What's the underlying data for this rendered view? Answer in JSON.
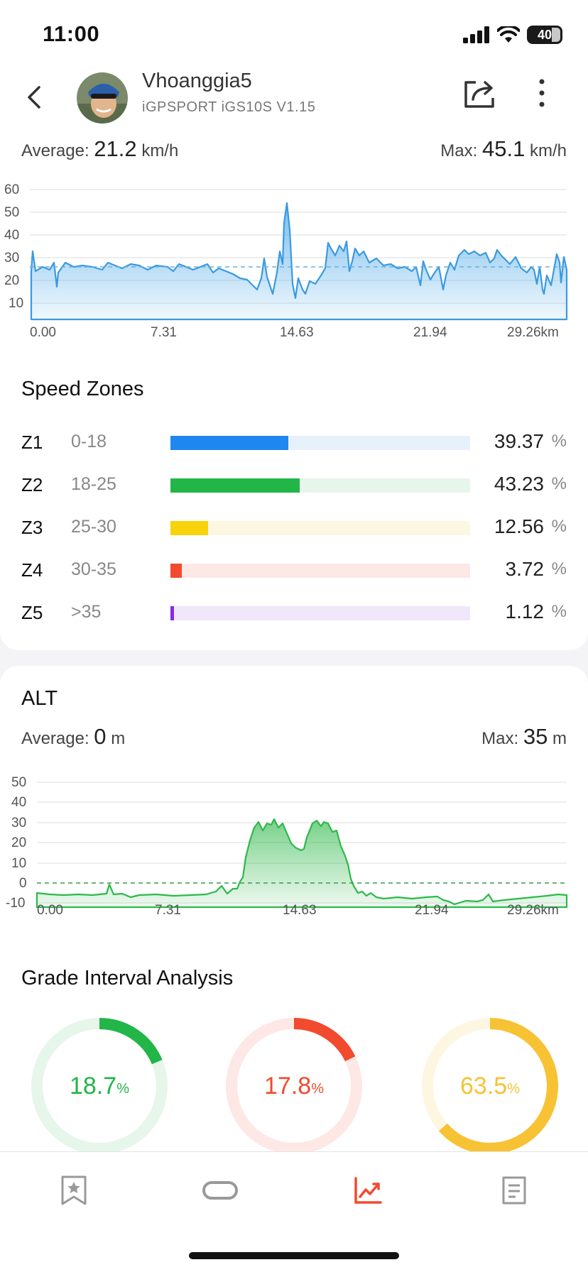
{
  "status_bar": {
    "time": "11:00",
    "battery": "40"
  },
  "header": {
    "user_name": "Vhoanggia5",
    "device": "iGPSPORT iGS10S V1.15"
  },
  "speed": {
    "average_label": "Average:",
    "average_value": "21.2",
    "unit": "km/h",
    "max_label": "Max:",
    "max_value": "45.1",
    "y_ticks": [
      "60",
      "50",
      "40",
      "30",
      "20",
      "10"
    ],
    "x_ticks": [
      "0.00",
      "7.31",
      "14.63",
      "21.94",
      "29.26km"
    ]
  },
  "speed_zones": {
    "title": "Speed Zones",
    "zones": [
      {
        "id": "Z1",
        "range": "0-18",
        "percent": "39.37",
        "value": 39.37,
        "color": "#1e88f0",
        "track": "#e6f1fc"
      },
      {
        "id": "Z2",
        "range": "18-25",
        "percent": "43.23",
        "value": 43.23,
        "color": "#22b548",
        "track": "#e6f6ea"
      },
      {
        "id": "Z3",
        "range": "25-30",
        "percent": "12.56",
        "value": 12.56,
        "color": "#f8d20a",
        "track": "#fdf7e2"
      },
      {
        "id": "Z4",
        "range": "30-35",
        "percent": "3.72",
        "value": 3.72,
        "color": "#f24a2e",
        "track": "#fde8e6"
      },
      {
        "id": "Z5",
        "range": ">35",
        "percent": "1.12",
        "value": 1.12,
        "color": "#8a2be2",
        "track": "#f1e7fb"
      }
    ],
    "percent_sign": "%"
  },
  "altitude": {
    "title": "ALT",
    "average_label": "Average:",
    "average_value": "0",
    "max_label": "Max:",
    "max_value": "35",
    "unit": "m",
    "y_ticks": [
      "50",
      "40",
      "30",
      "20",
      "10",
      "0",
      "-10"
    ],
    "x_ticks": [
      "0.00",
      "7.31",
      "14.63",
      "21.94",
      "29.26km"
    ]
  },
  "grade": {
    "title": "Grade Interval Analysis",
    "items": [
      {
        "value": "18.7",
        "fraction": 0.187,
        "color": "#22b548",
        "track": "#e6f6ea"
      },
      {
        "value": "17.8",
        "fraction": 0.178,
        "color": "#f24a2e",
        "track": "#fde8e6"
      },
      {
        "value": "63.5",
        "fraction": 0.635,
        "color": "#f7c233",
        "track": "#fdf7e2"
      }
    ],
    "percent_sign": "%"
  },
  "tabs": [
    "bookmark-star",
    "route",
    "analysis",
    "details"
  ],
  "colors": {
    "accent": "#f24a2e",
    "speed": "#4aa8e8",
    "altitude": "#2eb84a"
  }
}
